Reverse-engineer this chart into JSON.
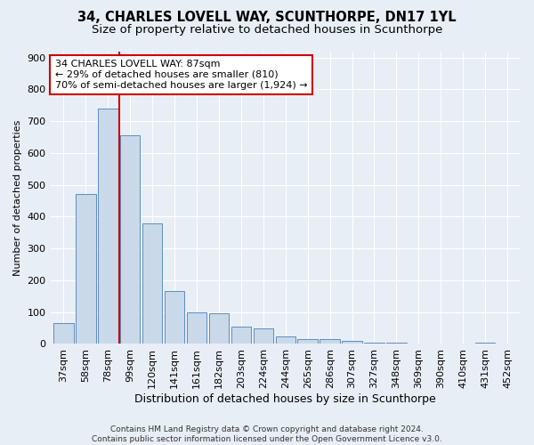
{
  "title": "34, CHARLES LOVELL WAY, SCUNTHORPE, DN17 1YL",
  "subtitle": "Size of property relative to detached houses in Scunthorpe",
  "xlabel": "Distribution of detached houses by size in Scunthorpe",
  "ylabel": "Number of detached properties",
  "bar_labels": [
    "37sqm",
    "58sqm",
    "78sqm",
    "99sqm",
    "120sqm",
    "141sqm",
    "161sqm",
    "182sqm",
    "203sqm",
    "224sqm",
    "244sqm",
    "265sqm",
    "286sqm",
    "307sqm",
    "327sqm",
    "348sqm",
    "369sqm",
    "390sqm",
    "410sqm",
    "431sqm",
    "452sqm"
  ],
  "bar_values": [
    65,
    470,
    740,
    655,
    380,
    165,
    100,
    95,
    55,
    50,
    25,
    15,
    15,
    10,
    5,
    5,
    0,
    0,
    0,
    5,
    0
  ],
  "bar_color": "#c9d9ea",
  "bar_edge_color": "#4a7fb5",
  "vline_x_index": 2.5,
  "vline_color": "#cc0000",
  "annotation_text": "34 CHARLES LOVELL WAY: 87sqm\n← 29% of detached houses are smaller (810)\n70% of semi-detached houses are larger (1,924) →",
  "annotation_box_color": "#ffffff",
  "annotation_box_edge": "#cc0000",
  "ylim": [
    0,
    920
  ],
  "yticks": [
    0,
    100,
    200,
    300,
    400,
    500,
    600,
    700,
    800,
    900
  ],
  "footer_text": "Contains HM Land Registry data © Crown copyright and database right 2024.\nContains public sector information licensed under the Open Government Licence v3.0.",
  "bg_color": "#e8eef5",
  "plot_bg_color": "#e8eef5",
  "grid_color": "#ffffff",
  "title_fontsize": 10.5,
  "subtitle_fontsize": 9.5,
  "ylabel_fontsize": 8,
  "xlabel_fontsize": 9,
  "tick_fontsize": 8,
  "annot_fontsize": 8
}
